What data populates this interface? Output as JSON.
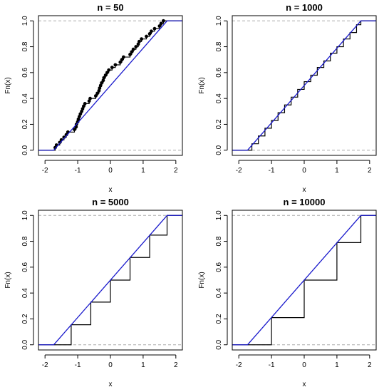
{
  "chart_data": [
    {
      "type": "line",
      "title": "n =  50",
      "xlabel": "x",
      "ylabel": "Fn(x)",
      "xlim": [
        -2.2,
        2.2
      ],
      "ylim": [
        -0.04,
        1.04
      ],
      "x_ticks": [
        "-2",
        "-1",
        "0",
        "1",
        "2"
      ],
      "x_tick_values": [
        -2,
        -1,
        0,
        1,
        2
      ],
      "y_ticks": [
        "0.0",
        "0.2",
        "0.4",
        "0.6",
        "0.8",
        "1.0"
      ],
      "y_tick_values": [
        0,
        0.2,
        0.4,
        0.6,
        0.8,
        1.0
      ],
      "reference_lines_y": [
        0,
        1
      ],
      "series": [
        {
          "kind": "empirical-step-with-points",
          "color": "#000000",
          "points": [
            [
              -1.69,
              0.02
            ],
            [
              -1.65,
              0.04
            ],
            [
              -1.55,
              0.06
            ],
            [
              -1.5,
              0.08
            ],
            [
              -1.42,
              0.1
            ],
            [
              -1.35,
              0.12
            ],
            [
              -1.3,
              0.14
            ],
            [
              -1.1,
              0.16
            ],
            [
              -1.05,
              0.18
            ],
            [
              -1.04,
              0.2
            ],
            [
              -1.0,
              0.22
            ],
            [
              -0.98,
              0.24
            ],
            [
              -0.95,
              0.26
            ],
            [
              -0.92,
              0.28
            ],
            [
              -0.88,
              0.3
            ],
            [
              -0.85,
              0.32
            ],
            [
              -0.82,
              0.34
            ],
            [
              -0.78,
              0.36
            ],
            [
              -0.65,
              0.38
            ],
            [
              -0.62,
              0.4
            ],
            [
              -0.45,
              0.42
            ],
            [
              -0.4,
              0.44
            ],
            [
              -0.35,
              0.46
            ],
            [
              -0.33,
              0.48
            ],
            [
              -0.3,
              0.5
            ],
            [
              -0.27,
              0.52
            ],
            [
              -0.22,
              0.54
            ],
            [
              -0.2,
              0.56
            ],
            [
              -0.15,
              0.58
            ],
            [
              -0.1,
              0.6
            ],
            [
              -0.05,
              0.62
            ],
            [
              0.05,
              0.64
            ],
            [
              0.15,
              0.66
            ],
            [
              0.3,
              0.68
            ],
            [
              0.35,
              0.7
            ],
            [
              0.4,
              0.72
            ],
            [
              0.6,
              0.74
            ],
            [
              0.65,
              0.76
            ],
            [
              0.7,
              0.78
            ],
            [
              0.78,
              0.8
            ],
            [
              0.85,
              0.82
            ],
            [
              0.88,
              0.84
            ],
            [
              0.95,
              0.86
            ],
            [
              1.1,
              0.88
            ],
            [
              1.2,
              0.9
            ],
            [
              1.25,
              0.92
            ],
            [
              1.35,
              0.94
            ],
            [
              1.5,
              0.96
            ],
            [
              1.55,
              0.98
            ],
            [
              1.62,
              1.0
            ]
          ]
        },
        {
          "kind": "uniform-cdf",
          "color": "#1a1acc",
          "support": [
            -1.732,
            1.732
          ]
        }
      ]
    },
    {
      "type": "line",
      "title": "n =  1000",
      "xlabel": "x",
      "ylabel": "Fn(x)",
      "xlim": [
        -2.2,
        2.2
      ],
      "ylim": [
        -0.04,
        1.04
      ],
      "x_ticks": [
        "-2",
        "-1",
        "0",
        "1",
        "2"
      ],
      "x_tick_values": [
        -2,
        -1,
        0,
        1,
        2
      ],
      "y_ticks": [
        "0.0",
        "0.2",
        "0.4",
        "0.6",
        "0.8",
        "1.0"
      ],
      "y_tick_values": [
        0,
        0.2,
        0.4,
        0.6,
        0.8,
        1.0
      ],
      "reference_lines_y": [
        0,
        1
      ],
      "series": [
        {
          "kind": "empirical-step",
          "color": "#000000",
          "points": [
            [
              -1.732,
              0.0
            ],
            [
              -1.6,
              0.05
            ],
            [
              -1.4,
              0.11
            ],
            [
              -1.2,
              0.17
            ],
            [
              -1.0,
              0.23
            ],
            [
              -0.8,
              0.29
            ],
            [
              -0.6,
              0.35
            ],
            [
              -0.4,
              0.41
            ],
            [
              -0.2,
              0.47
            ],
            [
              0.0,
              0.53
            ],
            [
              0.2,
              0.58
            ],
            [
              0.4,
              0.64
            ],
            [
              0.6,
              0.69
            ],
            [
              0.8,
              0.75
            ],
            [
              1.0,
              0.8
            ],
            [
              1.2,
              0.86
            ],
            [
              1.4,
              0.91
            ],
            [
              1.6,
              0.97
            ],
            [
              1.732,
              1.0
            ]
          ]
        },
        {
          "kind": "uniform-cdf",
          "color": "#1a1acc",
          "support": [
            -1.732,
            1.732
          ]
        }
      ]
    },
    {
      "type": "line",
      "title": "n =  5000",
      "xlabel": "x",
      "ylabel": "Fn(x)",
      "xlim": [
        -2.2,
        2.2
      ],
      "ylim": [
        -0.04,
        1.04
      ],
      "x_ticks": [
        "-2",
        "-1",
        "0",
        "1",
        "2"
      ],
      "x_tick_values": [
        -2,
        -1,
        0,
        1,
        2
      ],
      "y_ticks": [
        "0.0",
        "0.2",
        "0.4",
        "0.6",
        "0.8",
        "1.0"
      ],
      "y_tick_values": [
        0,
        0.2,
        0.4,
        0.6,
        0.8,
        1.0
      ],
      "reference_lines_y": [
        0,
        1
      ],
      "series": [
        {
          "kind": "empirical-step",
          "color": "#000000",
          "points": [
            [
              -1.732,
              0.0
            ],
            [
              -1.2,
              0.155
            ],
            [
              -0.6,
              0.33
            ],
            [
              0.0,
              0.5
            ],
            [
              0.6,
              0.675
            ],
            [
              1.2,
              0.848
            ],
            [
              1.732,
              1.0
            ]
          ]
        },
        {
          "kind": "uniform-cdf",
          "color": "#1a1acc",
          "support": [
            -1.732,
            1.732
          ]
        }
      ]
    },
    {
      "type": "line",
      "title": "n =  10000",
      "xlabel": "x",
      "ylabel": "Fn(x)",
      "xlim": [
        -2.2,
        2.2
      ],
      "ylim": [
        -0.04,
        1.04
      ],
      "x_ticks": [
        "-2",
        "-1",
        "0",
        "1",
        "2"
      ],
      "x_tick_values": [
        -2,
        -1,
        0,
        1,
        2
      ],
      "y_ticks": [
        "0.0",
        "0.2",
        "0.4",
        "0.6",
        "0.8",
        "1.0"
      ],
      "y_tick_values": [
        0,
        0.2,
        0.4,
        0.6,
        0.8,
        1.0
      ],
      "reference_lines_y": [
        0,
        1
      ],
      "series": [
        {
          "kind": "empirical-step",
          "color": "#000000",
          "points": [
            [
              -1.732,
              0.0
            ],
            [
              -1.0,
              0.21
            ],
            [
              0.0,
              0.5
            ],
            [
              1.0,
              0.79
            ],
            [
              1.732,
              1.0
            ]
          ]
        },
        {
          "kind": "uniform-cdf",
          "color": "#1a1acc",
          "support": [
            -1.732,
            1.732
          ]
        }
      ]
    }
  ],
  "style": {
    "reference_line_color": "#aaaaaa",
    "axis_color": "#000000"
  }
}
